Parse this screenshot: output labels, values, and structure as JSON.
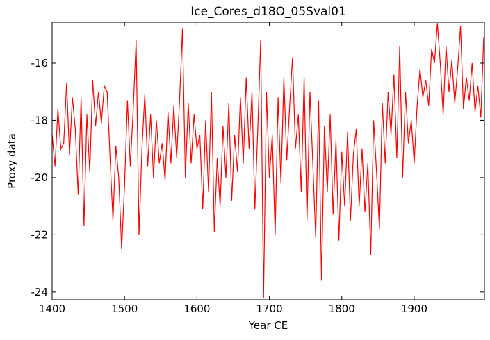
{
  "chart_data": {
    "type": "line",
    "title": "Ice_Cores_d18O_05Sval01",
    "xlabel": "Year CE",
    "ylabel": "Proxy data",
    "xlim": [
      1400,
      1997
    ],
    "ylim": [
      -24.27,
      -14.57
    ],
    "xticks": [
      1400,
      1500,
      1600,
      1700,
      1800,
      1900
    ],
    "yticks": [
      -24,
      -22,
      -20,
      -18,
      -16
    ],
    "x": [
      1400,
      1404,
      1408,
      1412,
      1416,
      1420,
      1424,
      1428,
      1432,
      1436,
      1440,
      1444,
      1448,
      1452,
      1456,
      1460,
      1464,
      1468,
      1472,
      1476,
      1480,
      1484,
      1488,
      1492,
      1496,
      1500,
      1504,
      1508,
      1512,
      1516,
      1520,
      1524,
      1528,
      1532,
      1536,
      1540,
      1544,
      1548,
      1552,
      1556,
      1560,
      1564,
      1568,
      1572,
      1576,
      1580,
      1584,
      1588,
      1592,
      1596,
      1600,
      1604,
      1608,
      1612,
      1616,
      1620,
      1624,
      1628,
      1632,
      1636,
      1640,
      1644,
      1648,
      1652,
      1656,
      1660,
      1664,
      1668,
      1672,
      1676,
      1680,
      1684,
      1688,
      1692,
      1696,
      1700,
      1704,
      1708,
      1712,
      1716,
      1720,
      1724,
      1728,
      1732,
      1736,
      1740,
      1744,
      1748,
      1752,
      1756,
      1760,
      1764,
      1768,
      1772,
      1776,
      1780,
      1784,
      1788,
      1792,
      1796,
      1800,
      1804,
      1808,
      1812,
      1816,
      1820,
      1824,
      1828,
      1832,
      1836,
      1840,
      1844,
      1848,
      1852,
      1856,
      1860,
      1864,
      1868,
      1872,
      1876,
      1880,
      1884,
      1888,
      1892,
      1896,
      1900,
      1904,
      1908,
      1912,
      1916,
      1920,
      1924,
      1928,
      1932,
      1936,
      1940,
      1944,
      1948,
      1952,
      1956,
      1960,
      1964,
      1968,
      1972,
      1976,
      1980,
      1984,
      1988,
      1992,
      1996
    ],
    "series": [
      {
        "color": "#ff0000",
        "values": [
          -18.5,
          -19.6,
          -17.6,
          -19.0,
          -18.8,
          -16.7,
          -19.2,
          -17.2,
          -18.3,
          -20.6,
          -17.2,
          -21.7,
          -17.8,
          -19.8,
          -16.6,
          -18.2,
          -17.0,
          -18.1,
          -16.8,
          -17.0,
          -19.3,
          -21.5,
          -18.9,
          -20.0,
          -22.5,
          -20.3,
          -17.3,
          -19.6,
          -17.6,
          -15.2,
          -22.0,
          -19.0,
          -17.1,
          -19.6,
          -17.8,
          -20.0,
          -18.0,
          -19.5,
          -18.8,
          -20.1,
          -17.7,
          -19.5,
          -17.5,
          -19.3,
          -17.3,
          -14.8,
          -20.0,
          -17.4,
          -19.5,
          -17.8,
          -19.0,
          -18.5,
          -21.1,
          -18.0,
          -20.5,
          -17.0,
          -21.9,
          -19.3,
          -21.0,
          -18.2,
          -20.0,
          -17.4,
          -20.8,
          -18.5,
          -19.8,
          -17.2,
          -19.5,
          -16.5,
          -19.0,
          -17.0,
          -21.1,
          -18.3,
          -15.2,
          -24.2,
          -17.0,
          -20.0,
          -18.5,
          -22.0,
          -17.2,
          -20.2,
          -16.5,
          -19.4,
          -17.5,
          -15.8,
          -19.0,
          -17.8,
          -20.5,
          -16.5,
          -21.5,
          -17.0,
          -19.5,
          -22.1,
          -17.3,
          -23.6,
          -18.2,
          -20.5,
          -17.8,
          -21.3,
          -18.7,
          -22.2,
          -19.1,
          -21.0,
          -18.4,
          -21.5,
          -19.2,
          -18.3,
          -21.0,
          -19.0,
          -21.2,
          -19.5,
          -22.7,
          -18.0,
          -19.8,
          -21.8,
          -17.4,
          -19.5,
          -17.0,
          -18.5,
          -16.4,
          -19.3,
          -15.4,
          -20.0,
          -17.0,
          -18.8,
          -18.0,
          -19.5,
          -17.5,
          -16.2,
          -17.2,
          -16.6,
          -17.5,
          -15.5,
          -16.0,
          -14.6,
          -16.0,
          -17.8,
          -15.4,
          -17.0,
          -15.9,
          -17.4,
          -16.2,
          -14.7,
          -17.6,
          -16.5,
          -17.3,
          -16.0,
          -17.7,
          -16.8,
          -17.9,
          -15.1
        ]
      }
    ]
  }
}
